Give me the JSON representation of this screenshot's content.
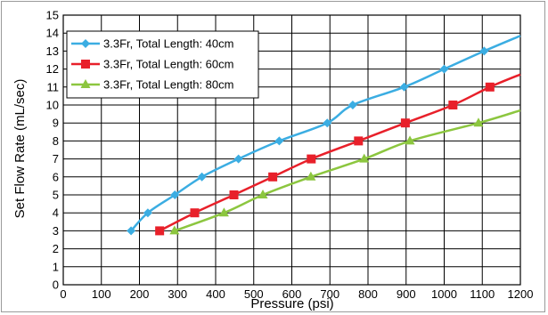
{
  "chart_data": {
    "type": "line",
    "title": "",
    "xlabel": "Pressure (psi)",
    "ylabel": "Set Flow Rate (mL/sec)",
    "xlim": [
      0,
      1200
    ],
    "ylim": [
      0,
      15
    ],
    "x_ticks": [
      0,
      100,
      200,
      300,
      400,
      500,
      600,
      700,
      800,
      900,
      1000,
      1100,
      1200
    ],
    "y_ticks": [
      0,
      1,
      2,
      3,
      4,
      5,
      6,
      7,
      8,
      9,
      10,
      11,
      12,
      13,
      14,
      15
    ],
    "grid": true,
    "legend_position": "top-left",
    "series": [
      {
        "name": "3.3Fr, Total Length: 40cm",
        "color": "#3bade2",
        "marker": "diamond",
        "points": [
          [
            178,
            3
          ],
          [
            222,
            4
          ],
          [
            293,
            5
          ],
          [
            364,
            6
          ],
          [
            460,
            7
          ],
          [
            567,
            8
          ],
          [
            693,
            9
          ],
          [
            760,
            10
          ],
          [
            895,
            11
          ],
          [
            1000,
            12
          ],
          [
            1105,
            13
          ],
          [
            1200,
            13.85
          ]
        ]
      },
      {
        "name": "3.3Fr, Total Length: 60cm",
        "color": "#e8202a",
        "marker": "square",
        "points": [
          [
            253,
            3
          ],
          [
            345,
            4
          ],
          [
            448,
            5
          ],
          [
            550,
            6
          ],
          [
            651,
            7
          ],
          [
            775,
            8
          ],
          [
            898,
            9
          ],
          [
            1023,
            10
          ],
          [
            1120,
            11
          ],
          [
            1200,
            11.7
          ]
        ]
      },
      {
        "name": "3.3Fr, Total Length: 80cm",
        "color": "#8cc63f",
        "marker": "triangle",
        "points": [
          [
            292,
            3
          ],
          [
            422,
            4
          ],
          [
            524,
            5
          ],
          [
            650,
            6
          ],
          [
            790,
            7
          ],
          [
            910,
            8
          ],
          [
            1090,
            9
          ],
          [
            1200,
            9.7
          ]
        ]
      }
    ]
  }
}
